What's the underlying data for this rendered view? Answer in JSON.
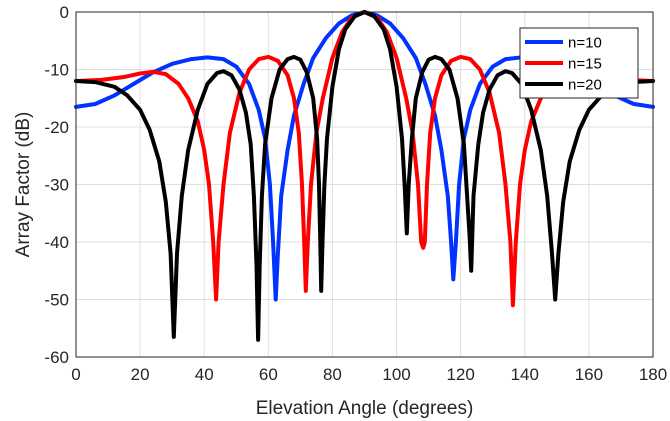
{
  "chart_data": {
    "type": "line",
    "title": "",
    "xlabel": "Elevation Angle (degrees)",
    "ylabel": "Array Factor (dB)",
    "xlim": [
      0,
      180
    ],
    "ylim": [
      -60,
      0
    ],
    "xticks": [
      0,
      20,
      40,
      60,
      80,
      100,
      120,
      140,
      160,
      180
    ],
    "yticks": [
      0,
      -10,
      -20,
      -30,
      -40,
      -50,
      -60
    ],
    "grid": true,
    "legend_position": "top-right",
    "series": [
      {
        "name": "n=10",
        "color": "#0033ff",
        "points": [
          [
            0,
            -16.5
          ],
          [
            6,
            -16
          ],
          [
            12,
            -14.5
          ],
          [
            18,
            -12.5
          ],
          [
            24,
            -10.5
          ],
          [
            30,
            -9
          ],
          [
            36,
            -8.2
          ],
          [
            41,
            -7.9
          ],
          [
            46,
            -8.2
          ],
          [
            50,
            -9.5
          ],
          [
            54,
            -12.5
          ],
          [
            57,
            -17
          ],
          [
            59,
            -22
          ],
          [
            60.5,
            -30
          ],
          [
            61.5,
            -40
          ],
          [
            62.3,
            -50
          ],
          [
            63,
            -42
          ],
          [
            64,
            -32
          ],
          [
            66,
            -24
          ],
          [
            68,
            -18
          ],
          [
            71,
            -12.5
          ],
          [
            74,
            -8
          ],
          [
            78,
            -4.5
          ],
          [
            82,
            -2
          ],
          [
            86,
            -0.6
          ],
          [
            90,
            0
          ],
          [
            94,
            -0.6
          ],
          [
            98,
            -2
          ],
          [
            102,
            -4.5
          ],
          [
            106,
            -8
          ],
          [
            109,
            -12.5
          ],
          [
            112,
            -18
          ],
          [
            114,
            -24
          ],
          [
            116,
            -32
          ],
          [
            117,
            -40
          ],
          [
            117.7,
            -46.5
          ],
          [
            118.5,
            -40
          ],
          [
            119.5,
            -30
          ],
          [
            121,
            -22
          ],
          [
            123,
            -17
          ],
          [
            126,
            -12.5
          ],
          [
            130,
            -9.5
          ],
          [
            134,
            -8.2
          ],
          [
            139,
            -7.9
          ],
          [
            144,
            -8.2
          ],
          [
            150,
            -9
          ],
          [
            156,
            -10.5
          ],
          [
            162,
            -12.5
          ],
          [
            168,
            -14.5
          ],
          [
            174,
            -16
          ],
          [
            180,
            -16.5
          ]
        ]
      },
      {
        "name": "n=15",
        "color": "#ff0000",
        "points": [
          [
            0,
            -12
          ],
          [
            8,
            -11.8
          ],
          [
            15,
            -11.3
          ],
          [
            20,
            -10.7
          ],
          [
            24,
            -10.4
          ],
          [
            28,
            -10.8
          ],
          [
            32,
            -12.5
          ],
          [
            35,
            -15
          ],
          [
            38,
            -19
          ],
          [
            40,
            -24
          ],
          [
            41.5,
            -30
          ],
          [
            42.8,
            -40
          ],
          [
            43.7,
            -50
          ],
          [
            44.5,
            -40
          ],
          [
            46,
            -30
          ],
          [
            48,
            -21
          ],
          [
            51,
            -14
          ],
          [
            54,
            -10
          ],
          [
            57,
            -8.2
          ],
          [
            60,
            -7.8
          ],
          [
            63,
            -8.5
          ],
          [
            66,
            -11
          ],
          [
            68,
            -15
          ],
          [
            69.5,
            -21
          ],
          [
            70.5,
            -30
          ],
          [
            71.2,
            -40
          ],
          [
            71.7,
            -48.5
          ],
          [
            72.3,
            -40
          ],
          [
            73.3,
            -30
          ],
          [
            75,
            -21
          ],
          [
            77,
            -15
          ],
          [
            80,
            -8
          ],
          [
            83,
            -3.5
          ],
          [
            86,
            -1
          ],
          [
            90,
            0
          ],
          [
            94,
            -1
          ],
          [
            97,
            -3.5
          ],
          [
            100,
            -8
          ],
          [
            103,
            -15
          ],
          [
            105,
            -21
          ],
          [
            106.7,
            -30
          ],
          [
            107.7,
            -40
          ],
          [
            108.3,
            -41
          ],
          [
            108.8,
            -40
          ],
          [
            109.5,
            -30
          ],
          [
            110.5,
            -21
          ],
          [
            112,
            -15
          ],
          [
            114,
            -11
          ],
          [
            117,
            -8.5
          ],
          [
            120,
            -7.8
          ],
          [
            123,
            -8.2
          ],
          [
            126,
            -10
          ],
          [
            129,
            -14
          ],
          [
            132,
            -21
          ],
          [
            134,
            -30
          ],
          [
            135.5,
            -40
          ],
          [
            136.3,
            -51
          ],
          [
            137.2,
            -40
          ],
          [
            138.5,
            -30
          ],
          [
            140,
            -24
          ],
          [
            142,
            -19
          ],
          [
            145,
            -15
          ],
          [
            148,
            -12.5
          ],
          [
            152,
            -10.8
          ],
          [
            156,
            -10.4
          ],
          [
            160,
            -10.7
          ],
          [
            165,
            -11.3
          ],
          [
            172,
            -11.8
          ],
          [
            180,
            -12
          ]
        ]
      },
      {
        "name": "n=20",
        "color": "#000000",
        "points": [
          [
            0,
            -12
          ],
          [
            6,
            -12.2
          ],
          [
            12,
            -13
          ],
          [
            16,
            -14.5
          ],
          [
            20,
            -17
          ],
          [
            23,
            -20.5
          ],
          [
            26,
            -26
          ],
          [
            28,
            -33
          ],
          [
            29.5,
            -42
          ],
          [
            30.5,
            -56.5
          ],
          [
            31.5,
            -42
          ],
          [
            33,
            -32
          ],
          [
            35,
            -24
          ],
          [
            38,
            -17
          ],
          [
            41,
            -12.5
          ],
          [
            44,
            -10.6
          ],
          [
            46,
            -10.3
          ],
          [
            48.5,
            -11
          ],
          [
            51,
            -13.5
          ],
          [
            53,
            -17.5
          ],
          [
            54.5,
            -23
          ],
          [
            55.5,
            -32
          ],
          [
            56.3,
            -44
          ],
          [
            56.8,
            -57
          ],
          [
            57.3,
            -44
          ],
          [
            58,
            -32
          ],
          [
            59,
            -23
          ],
          [
            61,
            -15
          ],
          [
            63.5,
            -10
          ],
          [
            66,
            -8.2
          ],
          [
            68,
            -7.8
          ],
          [
            70,
            -8.3
          ],
          [
            72,
            -10.5
          ],
          [
            74,
            -15
          ],
          [
            75.2,
            -22
          ],
          [
            75.8,
            -30
          ],
          [
            76.2,
            -40
          ],
          [
            76.5,
            -48.5
          ],
          [
            76.9,
            -40
          ],
          [
            77.5,
            -30
          ],
          [
            78.3,
            -22
          ],
          [
            80,
            -13
          ],
          [
            82,
            -6.5
          ],
          [
            84,
            -3
          ],
          [
            87,
            -0.7
          ],
          [
            90,
            0
          ],
          [
            93,
            -0.7
          ],
          [
            96,
            -3
          ],
          [
            98,
            -6.5
          ],
          [
            100,
            -13
          ],
          [
            101.7,
            -22
          ],
          [
            102.5,
            -30
          ],
          [
            103.2,
            -38.5
          ],
          [
            103.8,
            -30
          ],
          [
            104.8,
            -22
          ],
          [
            106,
            -15
          ],
          [
            108,
            -10.5
          ],
          [
            110,
            -8.3
          ],
          [
            112,
            -7.8
          ],
          [
            114,
            -8.2
          ],
          [
            116.5,
            -10
          ],
          [
            119,
            -15
          ],
          [
            121,
            -23
          ],
          [
            122,
            -32
          ],
          [
            122.8,
            -39
          ],
          [
            123.3,
            -45
          ],
          [
            124,
            -32
          ],
          [
            125.5,
            -23
          ],
          [
            127,
            -17.5
          ],
          [
            129,
            -13.5
          ],
          [
            131.5,
            -11
          ],
          [
            134,
            -10.3
          ],
          [
            136,
            -10.6
          ],
          [
            139,
            -12.5
          ],
          [
            142,
            -17
          ],
          [
            145,
            -24
          ],
          [
            147,
            -32
          ],
          [
            148.5,
            -42
          ],
          [
            149.5,
            -50
          ],
          [
            150.5,
            -42
          ],
          [
            152,
            -33
          ],
          [
            154,
            -26
          ],
          [
            157,
            -20.5
          ],
          [
            160,
            -17
          ],
          [
            164,
            -14.5
          ],
          [
            168,
            -13
          ],
          [
            174,
            -12.2
          ],
          [
            180,
            -12
          ]
        ]
      }
    ]
  }
}
